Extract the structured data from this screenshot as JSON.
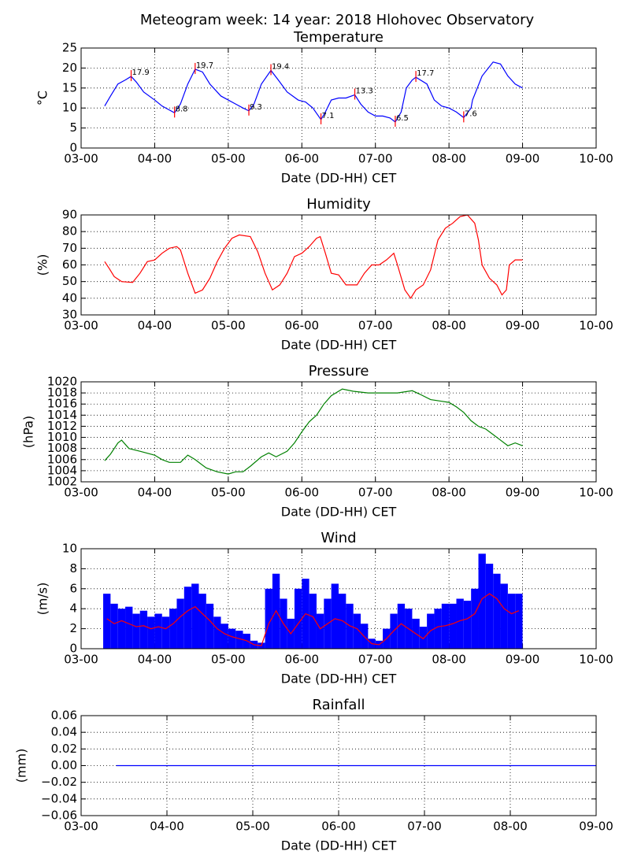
{
  "title": "Meteogram week: 14 year: 2018 Hlohovec Observatory",
  "chart_data": [
    {
      "type": "line",
      "title": "Temperature",
      "xlabel": "Date (DD-HH) CET",
      "ylabel": "°C",
      "color": "#0000ff",
      "grid": true,
      "xlim": [
        3,
        10
      ],
      "xticks": [
        {
          "value": 3,
          "label": "03-00"
        },
        {
          "value": 4,
          "label": "04-00"
        },
        {
          "value": 5,
          "label": "05-00"
        },
        {
          "value": 6,
          "label": "06-00"
        },
        {
          "value": 7,
          "label": "07-00"
        },
        {
          "value": 8,
          "label": "08-00"
        },
        {
          "value": 9,
          "label": "09-00"
        },
        {
          "value": 10,
          "label": "10-00"
        }
      ],
      "ylim": [
        0,
        25
      ],
      "yticks": [
        0,
        5,
        10,
        15,
        20,
        25
      ],
      "x": [
        3.32,
        3.4,
        3.5,
        3.6,
        3.68,
        3.75,
        3.85,
        4.0,
        4.1,
        4.2,
        4.27,
        4.35,
        4.45,
        4.55,
        4.65,
        4.75,
        4.9,
        5.0,
        5.1,
        5.2,
        5.28,
        5.35,
        5.45,
        5.58,
        5.68,
        5.8,
        5.95,
        6.05,
        6.15,
        6.26,
        6.32,
        6.4,
        6.5,
        6.6,
        6.72,
        6.8,
        6.9,
        7.0,
        7.1,
        7.2,
        7.27,
        7.35,
        7.42,
        7.5,
        7.55,
        7.7,
        7.8,
        7.9,
        8.0,
        8.1,
        8.2,
        8.3,
        8.32,
        8.45,
        8.6,
        8.7,
        8.8,
        8.9,
        9.0
      ],
      "values": [
        10.5,
        13,
        16,
        17,
        17.9,
        16.5,
        14,
        12,
        10.5,
        9.5,
        8.8,
        11,
        16,
        19.7,
        19,
        16,
        13,
        12,
        11,
        10,
        9.3,
        11,
        16,
        19.4,
        17,
        14,
        12,
        11.5,
        10,
        7.1,
        9,
        12,
        12.5,
        12.5,
        13.3,
        11,
        9,
        8,
        8,
        7.5,
        6.5,
        9,
        15,
        17,
        17.7,
        16,
        12,
        10.5,
        10,
        9,
        7.6,
        10,
        12,
        18,
        21.5,
        21,
        18,
        16,
        15
      ],
      "annotation_color": "#ff0000",
      "annotations": [
        {
          "x": 3.68,
          "y": 17.9
        },
        {
          "x": 4.27,
          "y": 8.8
        },
        {
          "x": 4.55,
          "y": 19.7
        },
        {
          "x": 5.28,
          "y": 9.3
        },
        {
          "x": 5.58,
          "y": 19.4
        },
        {
          "x": 6.26,
          "y": 7.1
        },
        {
          "x": 6.72,
          "y": 13.3
        },
        {
          "x": 7.27,
          "y": 6.5
        },
        {
          "x": 7.55,
          "y": 17.7
        },
        {
          "x": 8.2,
          "y": 7.6
        }
      ]
    },
    {
      "type": "line",
      "title": "Humidity",
      "xlabel": "Date (DD-HH) CET",
      "ylabel": "(%)",
      "color": "#ff0000",
      "grid": true,
      "xlim": [
        3,
        10
      ],
      "xticks": [
        {
          "value": 3,
          "label": "03-00"
        },
        {
          "value": 4,
          "label": "04-00"
        },
        {
          "value": 5,
          "label": "05-00"
        },
        {
          "value": 6,
          "label": "06-00"
        },
        {
          "value": 7,
          "label": "07-00"
        },
        {
          "value": 8,
          "label": "08-00"
        },
        {
          "value": 9,
          "label": "09-00"
        },
        {
          "value": 10,
          "label": "10-00"
        }
      ],
      "ylim": [
        30,
        90
      ],
      "yticks": [
        30,
        40,
        50,
        60,
        70,
        80,
        90
      ],
      "x": [
        3.32,
        3.38,
        3.45,
        3.55,
        3.7,
        3.8,
        3.9,
        4.0,
        4.1,
        4.2,
        4.3,
        4.35,
        4.45,
        4.55,
        4.65,
        4.75,
        4.85,
        4.95,
        5.05,
        5.15,
        5.3,
        5.4,
        5.5,
        5.6,
        5.7,
        5.8,
        5.9,
        6.0,
        6.1,
        6.2,
        6.25,
        6.32,
        6.4,
        6.5,
        6.6,
        6.75,
        6.85,
        6.95,
        7.05,
        7.15,
        7.25,
        7.3,
        7.4,
        7.48,
        7.55,
        7.65,
        7.75,
        7.85,
        7.95,
        8.05,
        8.15,
        8.25,
        8.35,
        8.4,
        8.45,
        8.55,
        8.65,
        8.72,
        8.78,
        8.82,
        8.9,
        9.0
      ],
      "values": [
        62,
        58,
        53,
        50,
        49.5,
        55,
        62,
        63,
        67,
        70,
        71,
        69,
        55,
        43,
        45,
        52,
        62,
        70,
        76,
        78,
        77,
        68,
        55,
        45,
        48,
        55,
        65,
        67,
        71,
        76,
        77,
        67,
        55,
        54,
        48,
        48,
        55,
        60,
        60,
        63,
        67,
        60,
        45,
        40,
        45,
        48,
        57,
        75,
        82,
        85,
        89,
        90,
        85,
        75,
        60,
        52,
        48,
        42,
        45,
        60,
        63,
        63
      ]
    },
    {
      "type": "line",
      "title": "Pressure",
      "xlabel": "Date (DD-HH) CET",
      "ylabel": "(hPa)",
      "color": "#008000",
      "grid": true,
      "xlim": [
        3,
        10
      ],
      "xticks": [
        {
          "value": 3,
          "label": "03-00"
        },
        {
          "value": 4,
          "label": "04-00"
        },
        {
          "value": 5,
          "label": "05-00"
        },
        {
          "value": 6,
          "label": "06-00"
        },
        {
          "value": 7,
          "label": "07-00"
        },
        {
          "value": 8,
          "label": "08-00"
        },
        {
          "value": 9,
          "label": "09-00"
        },
        {
          "value": 10,
          "label": "10-00"
        }
      ],
      "ylim": [
        1002,
        1020
      ],
      "yticks": [
        1002,
        1004,
        1006,
        1008,
        1010,
        1012,
        1014,
        1016,
        1018,
        1020
      ],
      "x": [
        3.32,
        3.4,
        3.5,
        3.55,
        3.65,
        3.8,
        4.0,
        4.1,
        4.2,
        4.35,
        4.45,
        4.55,
        4.7,
        4.85,
        5.0,
        5.1,
        5.2,
        5.3,
        5.45,
        5.55,
        5.65,
        5.8,
        5.9,
        6.0,
        6.1,
        6.2,
        6.3,
        6.4,
        6.55,
        6.7,
        6.9,
        7.1,
        7.3,
        7.5,
        7.6,
        7.75,
        7.9,
        8.0,
        8.1,
        8.2,
        8.3,
        8.4,
        8.5,
        8.6,
        8.7,
        8.8,
        8.9,
        9.0
      ],
      "values": [
        1005.8,
        1007,
        1009,
        1009.5,
        1008,
        1007.5,
        1006.8,
        1006,
        1005.5,
        1005.5,
        1006.8,
        1006,
        1004.5,
        1003.8,
        1003.4,
        1003.8,
        1003.8,
        1004.8,
        1006.5,
        1007.2,
        1006.5,
        1007.5,
        1009,
        1011,
        1012.8,
        1014,
        1016,
        1017.5,
        1018.7,
        1018.3,
        1018,
        1018,
        1018,
        1018.4,
        1017.8,
        1016.8,
        1016.5,
        1016.3,
        1015.5,
        1014.5,
        1013,
        1012,
        1011.5,
        1010.5,
        1009.5,
        1008.5,
        1009,
        1008.5
      ]
    },
    {
      "type": "bar",
      "title": "Wind",
      "xlabel": "Date (DD-HH) CET",
      "ylabel": "(m/s)",
      "grid": true,
      "xlim": [
        3,
        10
      ],
      "xticks": [
        {
          "value": 3,
          "label": "03-00"
        },
        {
          "value": 4,
          "label": "04-00"
        },
        {
          "value": 5,
          "label": "05-00"
        },
        {
          "value": 6,
          "label": "06-00"
        },
        {
          "value": 7,
          "label": "07-00"
        },
        {
          "value": 8,
          "label": "08-00"
        },
        {
          "value": 9,
          "label": "09-00"
        },
        {
          "value": 10,
          "label": "10-00"
        }
      ],
      "ylim": [
        0,
        10
      ],
      "yticks": [
        0,
        2,
        4,
        6,
        8,
        10
      ],
      "x": [
        3.35,
        3.45,
        3.55,
        3.65,
        3.75,
        3.85,
        3.95,
        4.05,
        4.15,
        4.25,
        4.35,
        4.45,
        4.55,
        4.65,
        4.75,
        4.85,
        4.95,
        5.05,
        5.15,
        5.25,
        5.35,
        5.45,
        5.55,
        5.65,
        5.75,
        5.85,
        5.95,
        6.05,
        6.15,
        6.25,
        6.35,
        6.45,
        6.55,
        6.65,
        6.75,
        6.85,
        6.95,
        7.05,
        7.15,
        7.25,
        7.35,
        7.45,
        7.55,
        7.65,
        7.75,
        7.85,
        7.95,
        8.05,
        8.15,
        8.25,
        8.35,
        8.45,
        8.55,
        8.65,
        8.75,
        8.85,
        8.95
      ],
      "series": [
        {
          "type": "bar",
          "color": "#0000ff",
          "values": [
            5.5,
            4.5,
            4,
            4.2,
            3.5,
            3.8,
            3.2,
            3.5,
            3.2,
            4,
            5,
            6.2,
            6.5,
            5.5,
            4.5,
            3.2,
            2.5,
            2,
            1.8,
            1.5,
            0.8,
            0.6,
            6,
            7.5,
            5,
            3,
            6,
            7,
            5.5,
            3.5,
            5,
            6.5,
            5.5,
            4.5,
            3.5,
            2.5,
            1,
            0.8,
            2,
            3.5,
            4.5,
            4,
            3,
            2.2,
            3.5,
            4,
            4.5,
            4.5,
            5,
            4.8,
            6,
            9.5,
            8.5,
            7.5,
            6.5,
            5.5,
            5.5
          ]
        },
        {
          "type": "line",
          "color": "#ff0000",
          "values": [
            3,
            2.5,
            2.8,
            2.5,
            2.2,
            2.3,
            2.0,
            2.2,
            2.0,
            2.5,
            3.2,
            3.8,
            4.2,
            3.5,
            2.8,
            2.0,
            1.5,
            1.2,
            1.0,
            0.8,
            0.4,
            0.3,
            2.5,
            3.8,
            2.5,
            1.5,
            2.5,
            3.5,
            3.2,
            2.0,
            2.5,
            3.0,
            2.8,
            2.3,
            2.0,
            1.2,
            0.5,
            0.4,
            1.0,
            1.8,
            2.5,
            2.0,
            1.5,
            1.0,
            1.8,
            2.2,
            2.3,
            2.5,
            2.8,
            3.0,
            3.5,
            5.0,
            5.5,
            5.0,
            4.0,
            3.5,
            3.8
          ]
        }
      ]
    },
    {
      "type": "line",
      "title": "Rainfall",
      "xlabel": "Date (DD-HH) CET",
      "ylabel": "(mm)",
      "color": "#0000ff",
      "grid": true,
      "xlim": [
        3,
        9
      ],
      "xticks": [
        {
          "value": 3,
          "label": "03-00"
        },
        {
          "value": 4,
          "label": "04-00"
        },
        {
          "value": 5,
          "label": "05-00"
        },
        {
          "value": 6,
          "label": "06-00"
        },
        {
          "value": 7,
          "label": "07-00"
        },
        {
          "value": 8,
          "label": "08-00"
        },
        {
          "value": 9,
          "label": "09-00"
        }
      ],
      "ylim": [
        -0.06,
        0.06
      ],
      "yticks": [
        {
          "value": -0.06,
          "label": "−0.06"
        },
        {
          "value": -0.04,
          "label": "−0.04"
        },
        {
          "value": -0.02,
          "label": "−0.02"
        },
        {
          "value": 0,
          "label": "0.00"
        },
        {
          "value": 0.02,
          "label": "0.02"
        },
        {
          "value": 0.04,
          "label": "0.04"
        },
        {
          "value": 0.06,
          "label": "0.06"
        }
      ],
      "x": [
        3.41,
        9.0
      ],
      "values": [
        0,
        0
      ]
    }
  ]
}
